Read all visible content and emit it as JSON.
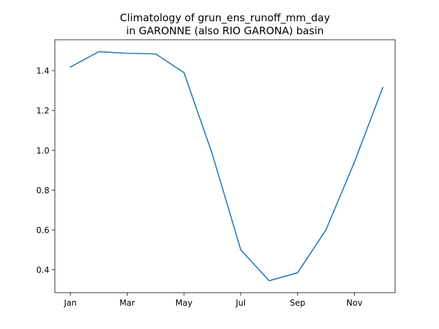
{
  "chart_data": {
    "type": "line",
    "title_line1": "Climatology of grun_ens_runoff_mm_day",
    "title_line2": "in GARONNE (also RIO GARONA) basin",
    "xlabel": "",
    "ylabel": "",
    "x": [
      "Jan",
      "Feb",
      "Mar",
      "Apr",
      "May",
      "Jun",
      "Jul",
      "Aug",
      "Sep",
      "Oct",
      "Nov",
      "Dec"
    ],
    "x_tick_labels": [
      "Jan",
      "Mar",
      "May",
      "Jul",
      "Sep",
      "Nov"
    ],
    "y_ticks": [
      0.4,
      0.6,
      0.8,
      1.0,
      1.2,
      1.4
    ],
    "y_tick_labels": [
      "0.4",
      "0.6",
      "0.8",
      "1.0",
      "1.2",
      "1.4"
    ],
    "ylim": [
      0.285,
      1.555
    ],
    "series": [
      {
        "values": [
          1.418,
          1.495,
          1.487,
          1.484,
          1.39,
          0.98,
          0.5,
          0.345,
          0.385,
          0.6,
          0.94,
          1.315
        ],
        "color": "#1f77b4"
      }
    ],
    "grid": false,
    "legend": "none"
  }
}
